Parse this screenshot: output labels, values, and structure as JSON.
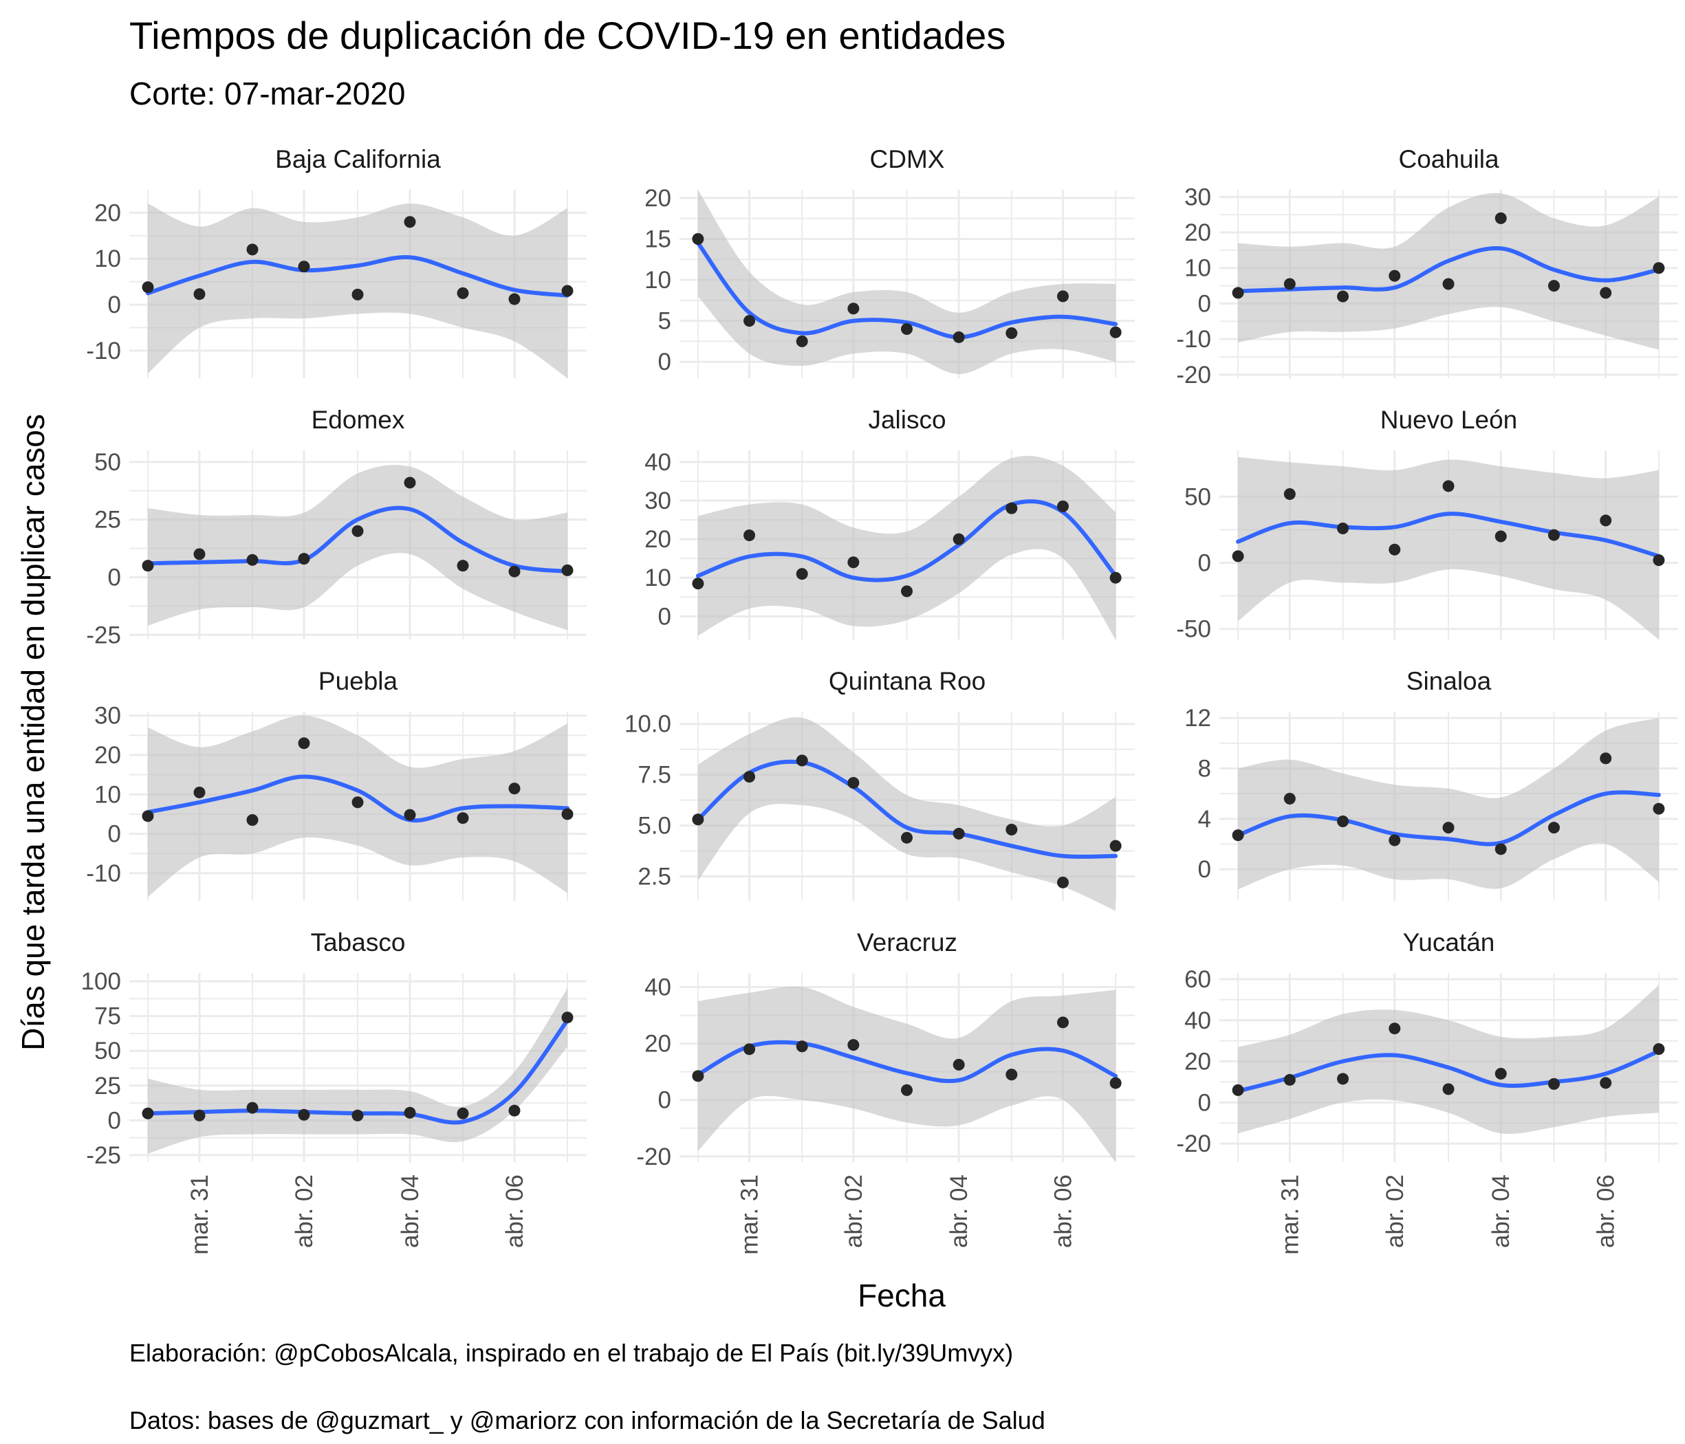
{
  "chart_data": {
    "type": "scatter",
    "title": "Tiempos de duplicación de COVID-19 en entidades",
    "subtitle": "Corte: 07-mar-2020",
    "xlabel": "Fecha",
    "ylabel": "Días que tarda una entidad en duplicar casos",
    "captions": [
      "Elaboración: @pCobosAlcala, inspirado en el trabajo de El País (bit.ly/39Umvyx)",
      "Datos: bases de @guzmart_ y @mariorz con información de la Secretaría de Salud"
    ],
    "x": [
      "2020-03-30",
      "2020-03-31",
      "2020-04-01",
      "2020-04-02",
      "2020-04-03",
      "2020-04-04",
      "2020-04-05",
      "2020-04-06",
      "2020-04-07"
    ],
    "x_tick_positions": [
      "2020-03-31",
      "2020-04-02",
      "2020-04-04",
      "2020-04-06"
    ],
    "x_tick_labels": [
      "mar. 31",
      "abr. 02",
      "abr. 04",
      "abr. 06"
    ],
    "legend": "none",
    "grid": true,
    "colors": {
      "points": "#262626",
      "smooth": "#3366ff",
      "ribbon": "#bfbfbf",
      "grid": "#ebebeb"
    },
    "panels": [
      {
        "name": "Baja California",
        "ylim": [
          -16,
          25
        ],
        "yticks": [
          -10,
          0,
          10,
          20
        ],
        "points": [
          3.8,
          2.3,
          12,
          8.3,
          2.2,
          18,
          2.5,
          1.2,
          3
        ],
        "smooth": [
          2.5,
          6.3,
          9.3,
          7.5,
          8.5,
          10.3,
          6.8,
          3.2,
          2
        ],
        "lower": [
          -15,
          -5,
          -3,
          -3,
          -2,
          -2,
          -5,
          -8,
          -16
        ],
        "upper": [
          22,
          17,
          21,
          18,
          19,
          22,
          19,
          15,
          21
        ]
      },
      {
        "name": "CDMX",
        "ylim": [
          -2,
          21
        ],
        "yticks": [
          0,
          5,
          10,
          15,
          20
        ],
        "points": [
          15,
          5,
          2.5,
          6.5,
          4,
          3,
          3.5,
          8,
          3.6
        ],
        "smooth": [
          14.5,
          6,
          3.5,
          5,
          4.8,
          3,
          4.8,
          5.5,
          4.6
        ],
        "lower": [
          8,
          1,
          -0.5,
          1,
          1,
          -1.5,
          1,
          1.5,
          0
        ],
        "upper": [
          21,
          11,
          7,
          8.5,
          8.5,
          6,
          8.5,
          9.5,
          9.5
        ]
      },
      {
        "name": "Coahuila",
        "ylim": [
          -21,
          32
        ],
        "yticks": [
          -20,
          -10,
          0,
          10,
          20,
          30
        ],
        "points": [
          3,
          5.5,
          2,
          7.8,
          5.5,
          24,
          5,
          3,
          10
        ],
        "smooth": [
          3.5,
          4,
          4.5,
          4.5,
          12,
          15.5,
          9.5,
          6.5,
          9.5
        ],
        "lower": [
          -11,
          -8,
          -8,
          -7,
          -3,
          -1,
          -5,
          -9,
          -13
        ],
        "upper": [
          17,
          16,
          17,
          16,
          27,
          31,
          24,
          22,
          30
        ]
      },
      {
        "name": "Edomex",
        "ylim": [
          -27,
          55
        ],
        "yticks": [
          -25,
          0,
          25,
          50
        ],
        "points": [
          5,
          10,
          7.5,
          8,
          20,
          41,
          5,
          2.5,
          3
        ],
        "smooth": [
          6,
          6.5,
          7,
          7.5,
          25,
          29.5,
          15,
          5,
          2.5
        ],
        "lower": [
          -21,
          -14,
          -13,
          -13,
          5,
          10,
          -5,
          -15,
          -23
        ],
        "upper": [
          30,
          27,
          27,
          28,
          45,
          48,
          35,
          25,
          28
        ]
      },
      {
        "name": "Jalisco",
        "ylim": [
          -6,
          43
        ],
        "yticks": [
          0,
          10,
          20,
          30,
          40
        ],
        "points": [
          8.5,
          21,
          11,
          14,
          6.5,
          20,
          28,
          28.5,
          10
        ],
        "smooth": [
          10.5,
          15.5,
          15.5,
          10,
          10.5,
          18.5,
          29,
          27,
          10.5
        ],
        "lower": [
          -5,
          2,
          2,
          -2.5,
          -1,
          6,
          16,
          15,
          -6
        ],
        "upper": [
          26,
          29,
          29,
          23,
          22,
          31,
          41,
          39,
          27
        ]
      },
      {
        "name": "Nuevo León",
        "ylim": [
          -58,
          85
        ],
        "yticks": [
          -50,
          0,
          50
        ],
        "points": [
          5,
          52,
          26,
          10,
          58,
          20,
          21,
          32,
          2
        ],
        "smooth": [
          16,
          30,
          27,
          27,
          37,
          31,
          23,
          17,
          5
        ],
        "lower": [
          -44,
          -15,
          -15,
          -15,
          -5,
          -10,
          -20,
          -28,
          -58
        ],
        "upper": [
          80,
          76,
          73,
          70,
          78,
          73,
          68,
          64,
          70
        ]
      },
      {
        "name": "Puebla",
        "ylim": [
          -17,
          31
        ],
        "yticks": [
          -10,
          0,
          10,
          20,
          30
        ],
        "points": [
          4.5,
          10.5,
          3.5,
          23,
          8,
          4.8,
          4,
          11.5,
          5
        ],
        "smooth": [
          5.5,
          8,
          11,
          14.5,
          11,
          3.5,
          6.5,
          7,
          6.5
        ],
        "lower": [
          -16,
          -6,
          -5,
          -1,
          -3,
          -8,
          -6,
          -7,
          -15
        ],
        "upper": [
          27,
          22,
          26,
          30,
          25,
          17,
          19,
          21,
          28
        ]
      },
      {
        "name": "Quintana Roo",
        "ylim": [
          1.3,
          10.6
        ],
        "yticks": [
          2.5,
          5.0,
          7.5,
          10.0
        ],
        "points": [
          5.3,
          7.4,
          8.2,
          7.1,
          4.4,
          4.6,
          4.8,
          2.2,
          4
        ],
        "smooth": [
          5.3,
          7.6,
          8.1,
          6.9,
          4.9,
          4.6,
          4,
          3.5,
          3.5
        ],
        "lower": [
          2.3,
          5.6,
          6,
          5.3,
          3.6,
          3.4,
          2.7,
          2,
          0.8
        ],
        "upper": [
          8,
          9.5,
          10.3,
          8.6,
          6.5,
          6,
          5.3,
          5,
          6.4
        ]
      },
      {
        "name": "Sinaloa",
        "ylim": [
          -2.5,
          12.5
        ],
        "yticks": [
          0,
          4,
          8,
          12
        ],
        "points": [
          2.7,
          5.6,
          3.8,
          2.3,
          3.3,
          1.6,
          3.3,
          8.8,
          4.8
        ],
        "smooth": [
          2.7,
          4.2,
          3.9,
          2.8,
          2.4,
          2.1,
          4.3,
          6,
          5.9
        ],
        "lower": [
          -1.6,
          0,
          0.3,
          -0.8,
          -0.8,
          -1.5,
          0.8,
          2,
          -1
        ],
        "upper": [
          8,
          8.7,
          7.6,
          6.7,
          6.4,
          5.7,
          8,
          11,
          12
        ]
      },
      {
        "name": "Tabasco",
        "ylim": [
          -30,
          106
        ],
        "yticks": [
          -25,
          0,
          25,
          50,
          75,
          100
        ],
        "points": [
          5,
          3.5,
          9,
          4,
          3.5,
          5.5,
          5,
          7,
          74
        ],
        "smooth": [
          5,
          6,
          7,
          6,
          5,
          4.5,
          -1,
          20,
          72
        ],
        "lower": [
          -24,
          -12,
          -10,
          -10,
          -10,
          -10,
          -15,
          7,
          53
        ],
        "upper": [
          30,
          22,
          22,
          22,
          22,
          21,
          10,
          35,
          95
        ]
      },
      {
        "name": "Veracruz",
        "ylim": [
          -22,
          45
        ],
        "yticks": [
          -20,
          0,
          20,
          40
        ],
        "points": [
          8.5,
          18,
          19,
          19.5,
          3.5,
          12.5,
          9,
          27.5,
          6
        ],
        "smooth": [
          9,
          19,
          20,
          15,
          9.5,
          7,
          16,
          17.5,
          8.5
        ],
        "lower": [
          -18,
          0,
          0,
          -3,
          -8,
          -9,
          -2,
          0,
          -22
        ],
        "upper": [
          35,
          38,
          40,
          33,
          27,
          22,
          35,
          37,
          39
        ]
      },
      {
        "name": "Yucatán",
        "ylim": [
          -29,
          63
        ],
        "yticks": [
          -20,
          0,
          20,
          40,
          60
        ],
        "points": [
          6,
          11,
          11.5,
          36,
          6.5,
          14,
          9,
          9.5,
          26
        ],
        "smooth": [
          5.5,
          12,
          20,
          23,
          17,
          8.5,
          10,
          14,
          25
        ],
        "lower": [
          -15,
          -8,
          0,
          1,
          -5,
          -15,
          -12,
          -7,
          -5
        ],
        "upper": [
          27,
          33,
          43,
          45,
          40,
          32,
          32,
          36,
          57
        ]
      }
    ]
  }
}
